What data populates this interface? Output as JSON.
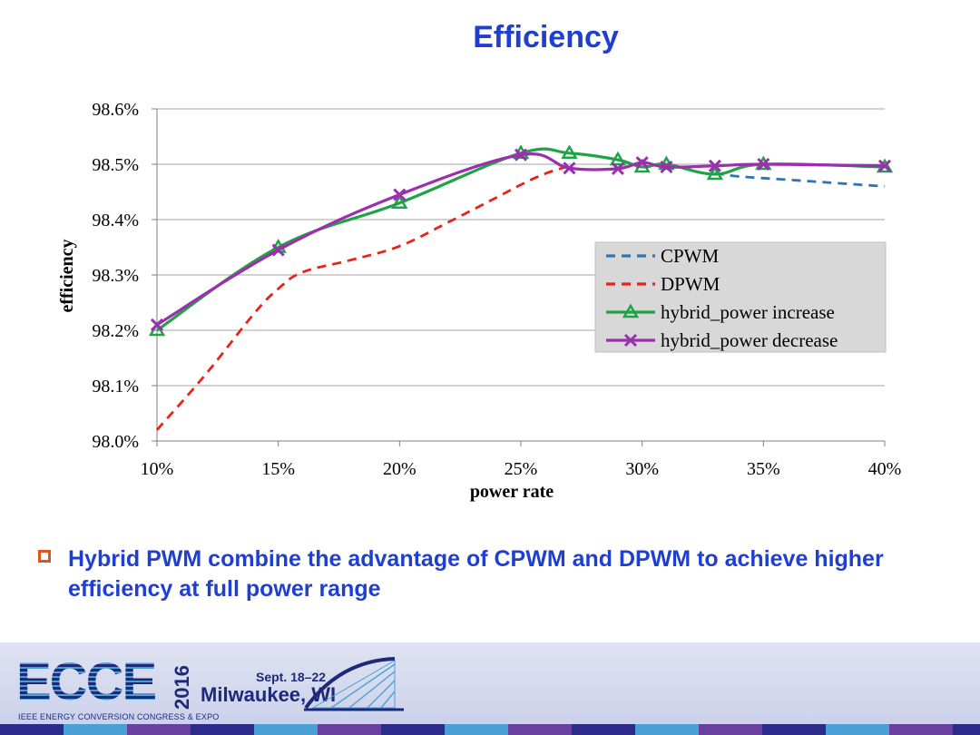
{
  "slide": {
    "title": "Efficiency",
    "bullet": "Hybrid PWM combine the advantage of CPWM and DPWM to achieve higher efficiency at full power range"
  },
  "footer": {
    "logo_text": "ECCE",
    "year": "2016",
    "subtitle": "IEEE ENERGY CONVERSION CONGRESS & EXPO",
    "date": "Sept. 18–22",
    "city": "Milwaukee, WI",
    "icon": "bridge-icon"
  },
  "colors": {
    "title": "#1f3fd1",
    "bullet_box": "#e0531f",
    "cpwm": "#2e75b6",
    "dpwm": "#e8231a",
    "hybrid_increase": "#1fa346",
    "hybrid_decrease": "#9b2fae"
  },
  "chart_data": {
    "type": "line",
    "title": "",
    "xlabel": "power rate",
    "ylabel": "efficiency",
    "x_ticks": [
      "10%",
      "15%",
      "20%",
      "25%",
      "30%",
      "35%",
      "40%"
    ],
    "y_ticks": [
      "98.0%",
      "98.1%",
      "98.2%",
      "98.3%",
      "98.4%",
      "98.5%",
      "98.6%"
    ],
    "xlim": [
      10,
      40
    ],
    "ylim": [
      98.0,
      98.6
    ],
    "grid": "horizontal",
    "legend_position": "right",
    "series": [
      {
        "name": "CPWM",
        "style": "dashed",
        "marker": "none",
        "x": [
          33,
          34,
          36,
          38,
          40
        ],
        "y": [
          98.484,
          98.478,
          98.472,
          98.466,
          98.46
        ]
      },
      {
        "name": "DPWM",
        "style": "dashed",
        "marker": "none",
        "x": [
          10,
          12,
          14,
          15,
          16,
          18,
          20,
          22,
          24,
          25,
          26,
          27
        ],
        "y": [
          98.02,
          98.12,
          98.23,
          98.275,
          98.305,
          98.327,
          98.352,
          98.395,
          98.44,
          98.463,
          98.483,
          98.497
        ]
      },
      {
        "name": "hybrid_power increase",
        "style": "solid",
        "marker": "triangle",
        "x": [
          10,
          15,
          20,
          25,
          27,
          29,
          30,
          31,
          33,
          35,
          40
        ],
        "y": [
          98.2,
          98.35,
          98.43,
          98.52,
          98.52,
          98.508,
          98.495,
          98.5,
          98.482,
          98.5,
          98.495
        ]
      },
      {
        "name": "hybrid_power decrease",
        "style": "solid",
        "marker": "x",
        "x": [
          10,
          15,
          20,
          25,
          27,
          29,
          30,
          31,
          33,
          35,
          40
        ],
        "y": [
          98.21,
          98.345,
          98.445,
          98.517,
          98.493,
          98.492,
          98.503,
          98.495,
          98.497,
          98.5,
          98.497
        ]
      }
    ]
  }
}
